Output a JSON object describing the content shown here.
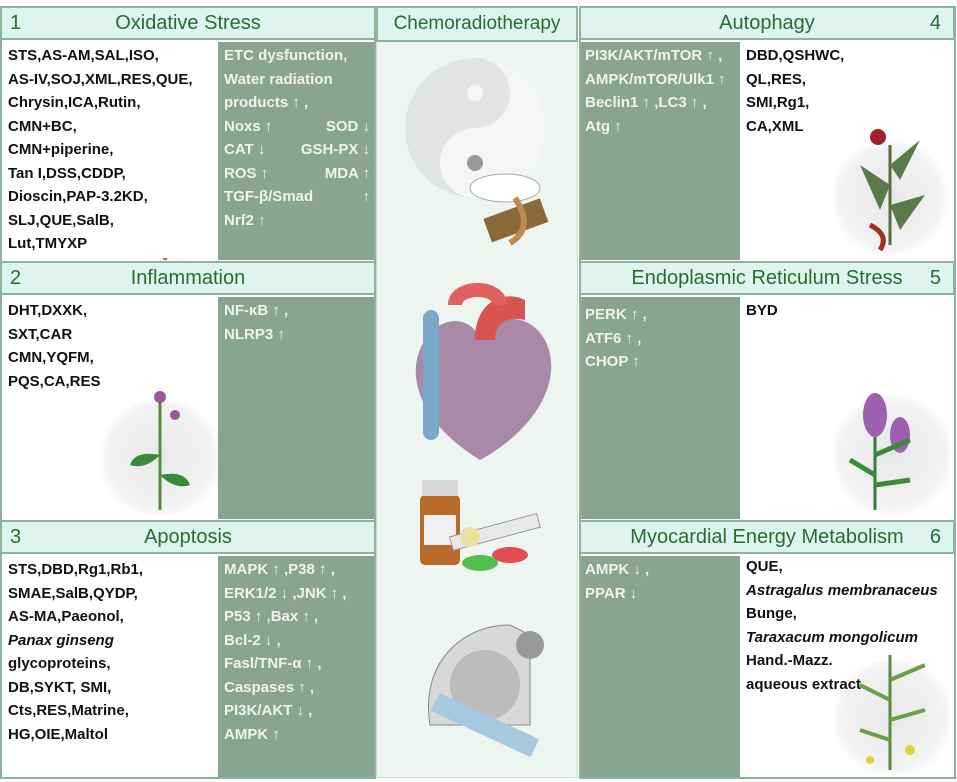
{
  "center": {
    "title": "Chemoradiotherapy"
  },
  "sections": [
    {
      "num": "1",
      "title": "Oxidative Stress",
      "drugs": [
        "STS,AS-AM,SAL,ISO,",
        "AS-IV,SOJ,XML,RES,QUE,",
        "Chrysin,ICA,Rutin,",
        "CMN+BC,",
        "CMN+piperine,",
        "Tan I,DSS,CDDP,",
        "Dioscin,PAP-3.2KD,",
        "SLJ,QUE,SalB,",
        "Lut,TMYXP"
      ],
      "mechanisms": [
        [
          "ETC dysfunction,",
          ""
        ],
        [
          "Water radiation",
          ""
        ],
        [
          "products ↑ ,",
          ""
        ],
        [
          "Noxs ↑",
          "SOD ↓"
        ],
        [
          "CAT ↓",
          "GSH-PX ↓"
        ],
        [
          "ROS ↑",
          "MDA ↑"
        ],
        [
          "TGF-β/Smad",
          "↑"
        ],
        [
          "Nrf2 ↑",
          ""
        ]
      ]
    },
    {
      "num": "2",
      "title": "Inflammation",
      "drugs": [
        "DHT,DXXK,",
        "SXT,CAR",
        "CMN,YQFM,",
        "PQS,CA,RES"
      ],
      "mechanisms": [
        "NF-κB ↑ ,",
        "NLRP3 ↑"
      ]
    },
    {
      "num": "3",
      "title": "Apoptosis",
      "drugs": [
        "STS,DBD,Rg1,Rb1,",
        "SMAE,SalB,QYDP,",
        "AS-MA,Paeonol,",
        "Panax ginseng",
        "glycoproteins,",
        "DB,SYKT, SMI,",
        "Cts,RES,Matrine,",
        "HG,OIE,Maltol"
      ],
      "mechanisms": [
        "MAPK ↑ ,P38 ↑ ,",
        "ERK1/2 ↓ ,JNK ↑ ,",
        "P53 ↑ ,Bax ↑ ,",
        "Bcl-2 ↓ ,",
        "Fasl/TNF-α ↑ ,",
        "Caspases ↑ ,",
        "PI3K/AKT ↓ ,",
        "AMPK ↑"
      ]
    },
    {
      "num": "4",
      "title": "Autophagy",
      "mechanisms": [
        "PI3K/AKT/mTOR ↑ ,",
        "AMPK/mTOR/Ulk1 ↑",
        "Beclin1 ↑ ,LC3 ↑ ,",
        "Atg ↑"
      ],
      "drugs": [
        "DBD,QSHWC,",
        "QL,RES,",
        "SMI,Rg1,",
        "CA,XML"
      ]
    },
    {
      "num": "5",
      "title": "Endoplasmic Reticulum Stress",
      "mechanisms": [
        "PERK ↑ ,",
        "ATF6 ↑ ,",
        "CHOP ↑"
      ],
      "drugs": [
        "BYD"
      ]
    },
    {
      "num": "6",
      "title": "Myocardial Energy Metabolism",
      "mechanisms": [
        "AMPK ↓ ,",
        "PPAR ↓"
      ],
      "drugs": [
        "QUE,",
        "Astragalus membranaceus",
        "Bunge,",
        "Taraxacum mongolicum",
        "Hand.-Mazz.",
        "aqueous extract"
      ]
    }
  ],
  "colors": {
    "header_bg": "#ddf5ee",
    "header_text": "#2c6b30",
    "mechanism_bg": "#88a592",
    "border": "#8fb29c"
  }
}
